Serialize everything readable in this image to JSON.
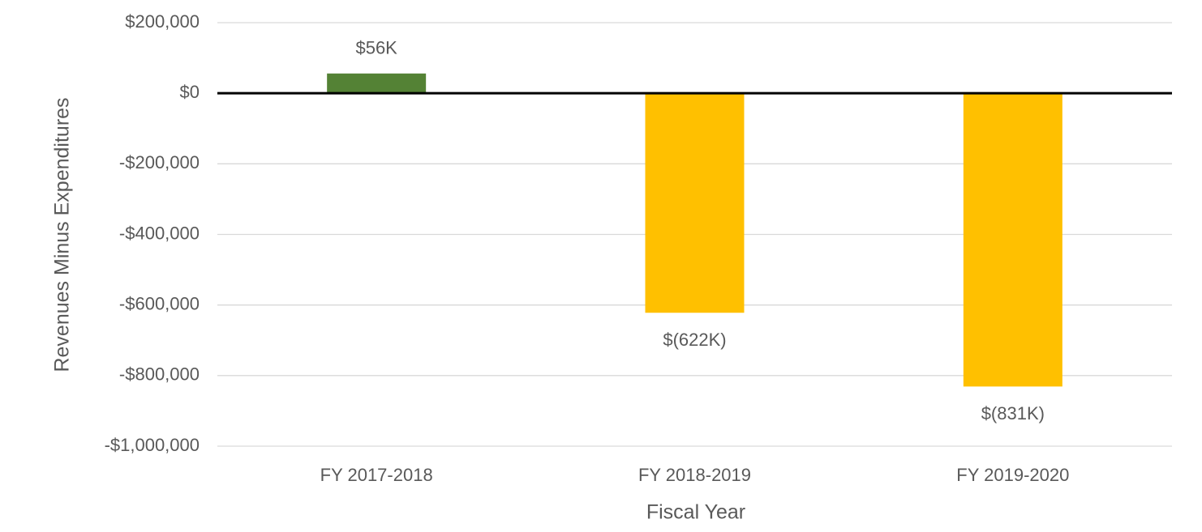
{
  "chart_data": {
    "type": "bar",
    "x_label": "Fiscal Year",
    "y_label": "Revenues Minus Expenditures",
    "categories": [
      "FY 2017-2018",
      "FY 2018-2019",
      "FY 2019-2020"
    ],
    "values": [
      56000,
      -622000,
      -831000
    ],
    "value_labels": [
      "$56K",
      "$(622K)",
      "$(831K)"
    ],
    "colors": [
      "#548235",
      "#ffc000",
      "#ffc000"
    ],
    "ylim": [
      -1000000,
      200000
    ],
    "yticks": [
      {
        "value": -1000000,
        "label": "-$1,000,000"
      },
      {
        "value": -800000,
        "label": "-$800,000"
      },
      {
        "value": -600000,
        "label": "-$600,000"
      },
      {
        "value": -400000,
        "label": "-$400,000"
      },
      {
        "value": -200000,
        "label": "-$200,000"
      },
      {
        "value": 0,
        "label": "$0"
      },
      {
        "value": 200000,
        "label": "$200,000"
      }
    ],
    "grid": true
  }
}
